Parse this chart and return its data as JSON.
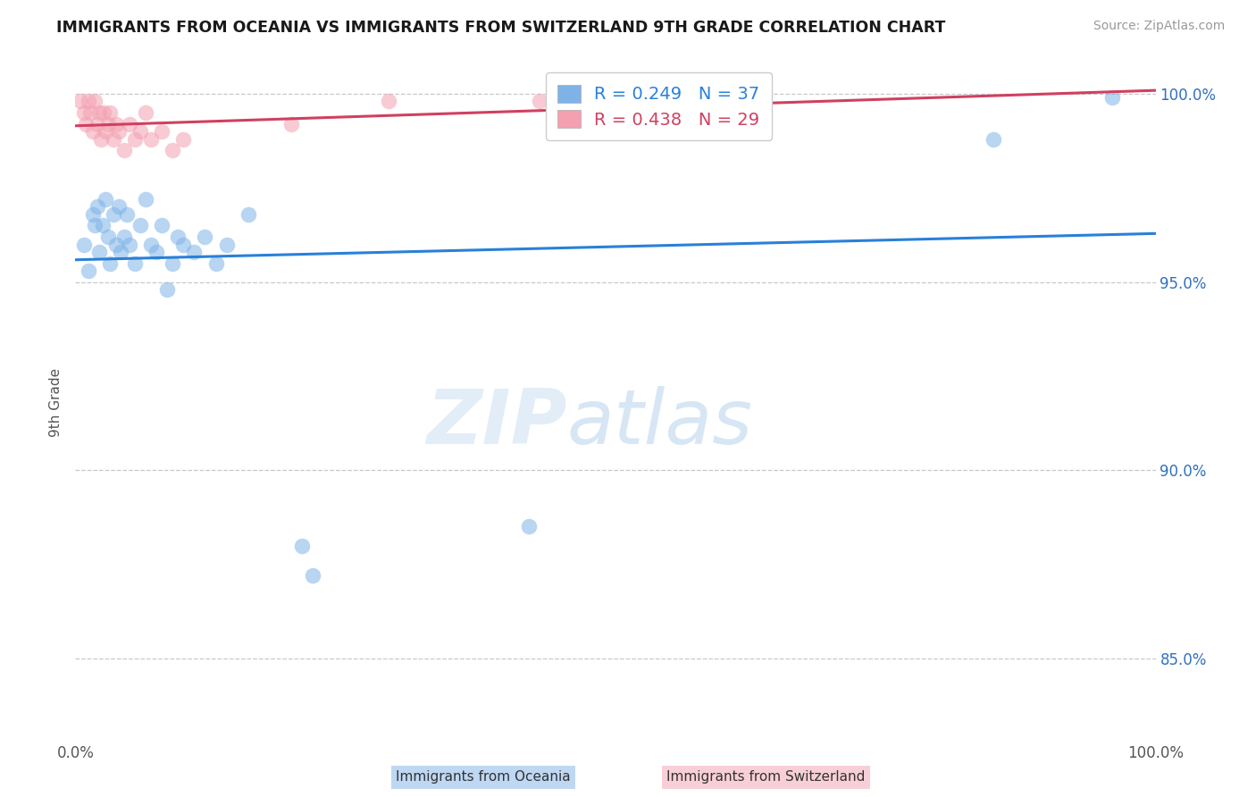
{
  "title": "IMMIGRANTS FROM OCEANIA VS IMMIGRANTS FROM SWITZERLAND 9TH GRADE CORRELATION CHART",
  "source": "Source: ZipAtlas.com",
  "ylabel": "9th Grade",
  "xlim": [
    0.0,
    1.0
  ],
  "ylim": [
    0.828,
    1.008
  ],
  "x_ticks": [
    0.0,
    0.25,
    0.5,
    0.75,
    1.0
  ],
  "x_tick_labels": [
    "0.0%",
    "",
    "",
    "",
    "100.0%"
  ],
  "y_ticks": [
    0.85,
    0.9,
    0.95,
    1.0
  ],
  "y_tick_labels": [
    "85.0%",
    "90.0%",
    "95.0%",
    "100.0%"
  ],
  "grid_color": "#bbbbbb",
  "background_color": "#ffffff",
  "oceania_color": "#7fb3e8",
  "switzerland_color": "#f4a0b0",
  "oceania_R": 0.249,
  "oceania_N": 37,
  "switzerland_R": 0.438,
  "switzerland_N": 29,
  "oceania_line_color": "#2980d9",
  "switzerland_line_color": "#d04060",
  "watermark_zip": "ZIP",
  "watermark_atlas": "atlas",
  "oceania_x": [
    0.008,
    0.012,
    0.016,
    0.018,
    0.02,
    0.022,
    0.025,
    0.028,
    0.03,
    0.032,
    0.035,
    0.038,
    0.04,
    0.042,
    0.045,
    0.048,
    0.05,
    0.055,
    0.06,
    0.065,
    0.07,
    0.075,
    0.08,
    0.085,
    0.09,
    0.095,
    0.1,
    0.11,
    0.12,
    0.13,
    0.14,
    0.16,
    0.21,
    0.22,
    0.42,
    0.85,
    0.96
  ],
  "oceania_y": [
    0.96,
    0.953,
    0.968,
    0.965,
    0.97,
    0.958,
    0.965,
    0.972,
    0.962,
    0.955,
    0.968,
    0.96,
    0.97,
    0.958,
    0.962,
    0.968,
    0.96,
    0.955,
    0.965,
    0.972,
    0.96,
    0.958,
    0.965,
    0.948,
    0.955,
    0.962,
    0.96,
    0.958,
    0.962,
    0.955,
    0.96,
    0.968,
    0.88,
    0.872,
    0.885,
    0.988,
    0.999
  ],
  "switzerland_x": [
    0.005,
    0.008,
    0.01,
    0.012,
    0.014,
    0.016,
    0.018,
    0.02,
    0.022,
    0.024,
    0.026,
    0.028,
    0.03,
    0.032,
    0.035,
    0.038,
    0.04,
    0.045,
    0.05,
    0.055,
    0.06,
    0.065,
    0.07,
    0.08,
    0.09,
    0.1,
    0.2,
    0.29,
    0.43
  ],
  "switzerland_y": [
    0.998,
    0.995,
    0.992,
    0.998,
    0.995,
    0.99,
    0.998,
    0.992,
    0.995,
    0.988,
    0.995,
    0.99,
    0.992,
    0.995,
    0.988,
    0.992,
    0.99,
    0.985,
    0.992,
    0.988,
    0.99,
    0.995,
    0.988,
    0.99,
    0.985,
    0.988,
    0.992,
    0.998,
    0.998
  ]
}
